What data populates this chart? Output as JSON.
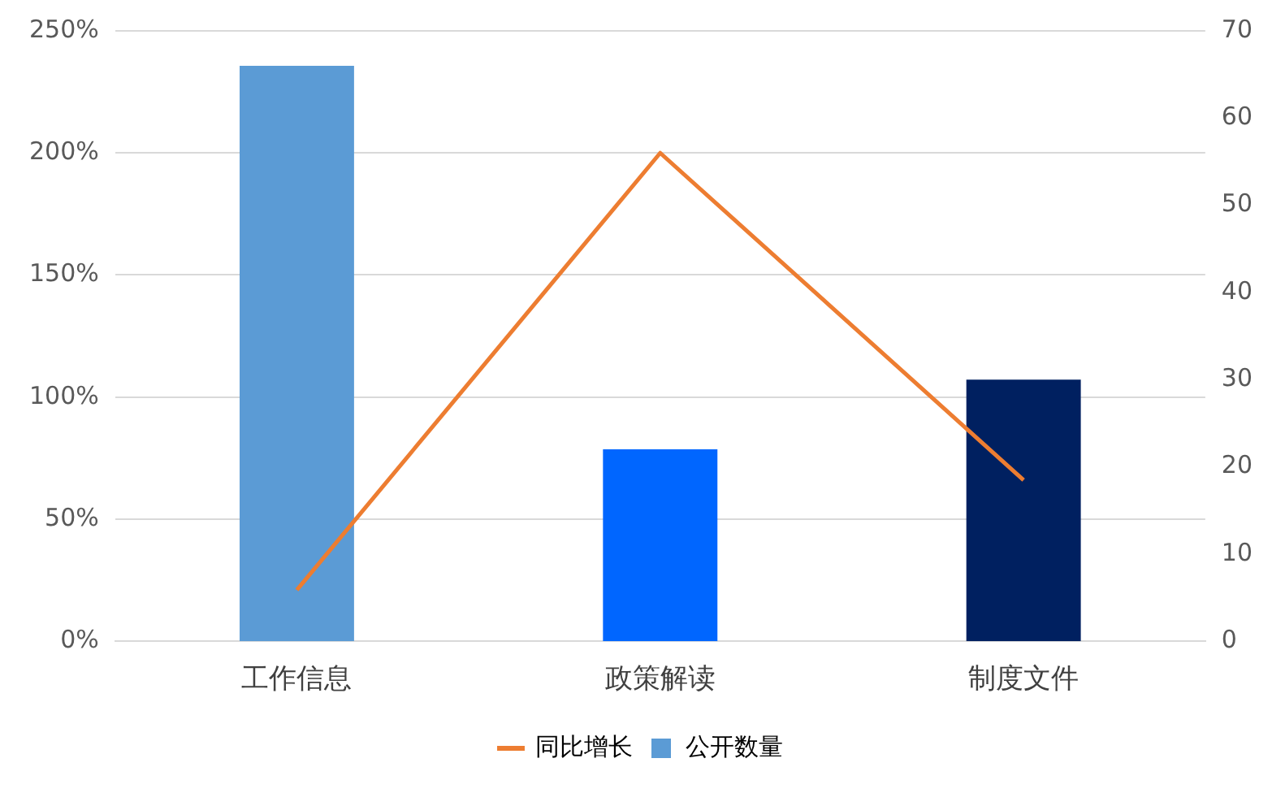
{
  "chart_data": {
    "type": "bar",
    "categories": [
      "工作信息",
      "政策解读",
      "制度文件"
    ],
    "series": [
      {
        "name": "同比增长",
        "type": "line",
        "color": "#ed7d31",
        "values": [
          21,
          200,
          66
        ]
      },
      {
        "name": "公开数量",
        "axis": "y2",
        "color": "#5b9bd5",
        "colors": [
          "#5b9bd5",
          "#0066ff",
          "#002060"
        ],
        "values": [
          66,
          22,
          30
        ]
      }
    ],
    "ylim": [
      0,
      250
    ],
    "yticks": [
      {
        "value": 0,
        "label": "0%"
      },
      {
        "value": 50,
        "label": "50%"
      },
      {
        "value": 100,
        "label": "100%"
      },
      {
        "value": 150,
        "label": "150%"
      },
      {
        "value": 200,
        "label": "200%"
      },
      {
        "value": 250,
        "label": "250%"
      }
    ],
    "y2lim": [
      0,
      70
    ],
    "y2ticks": [
      0,
      10,
      20,
      30,
      40,
      50,
      60,
      70
    ],
    "grid": "y",
    "legend": "bottom",
    "marker": "none"
  }
}
